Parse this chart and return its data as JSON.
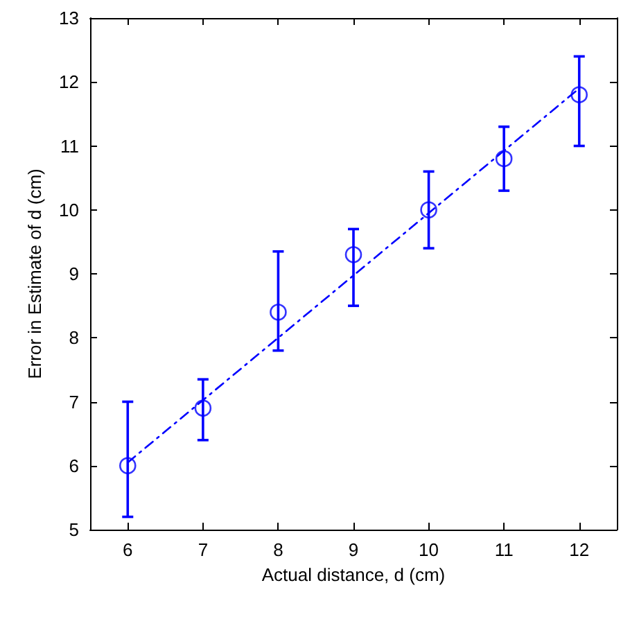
{
  "chart_data": {
    "type": "scatter",
    "xlabel": "Actual distance, d (cm)",
    "ylabel": "Error in Estimate of d (cm)",
    "xlim": [
      5.5,
      12.5
    ],
    "xticks": [
      6,
      7,
      8,
      9,
      10,
      11,
      12
    ],
    "ylim": [
      5,
      13
    ],
    "yticks": [
      5,
      6,
      7,
      8,
      9,
      10,
      11,
      12,
      13
    ],
    "grid": false,
    "series": [
      {
        "color": "#0000ff",
        "marker": "circle",
        "x": [
          6,
          7,
          8,
          9,
          10,
          11,
          12
        ],
        "values": [
          6.0,
          6.9,
          8.4,
          9.3,
          10.0,
          10.8,
          11.8
        ],
        "errors": [
          [
            5.2,
            7.0
          ],
          [
            6.4,
            7.35
          ],
          [
            7.8,
            9.35
          ],
          [
            8.5,
            9.7
          ],
          [
            9.4,
            10.6
          ],
          [
            10.3,
            11.3
          ],
          [
            11.0,
            12.4
          ]
        ]
      },
      {
        "type": "line",
        "color": "#0000ff",
        "marker": "none",
        "line_style": "dashed",
        "x": [
          6,
          12
        ],
        "values": [
          6.05,
          11.9
        ]
      }
    ]
  }
}
